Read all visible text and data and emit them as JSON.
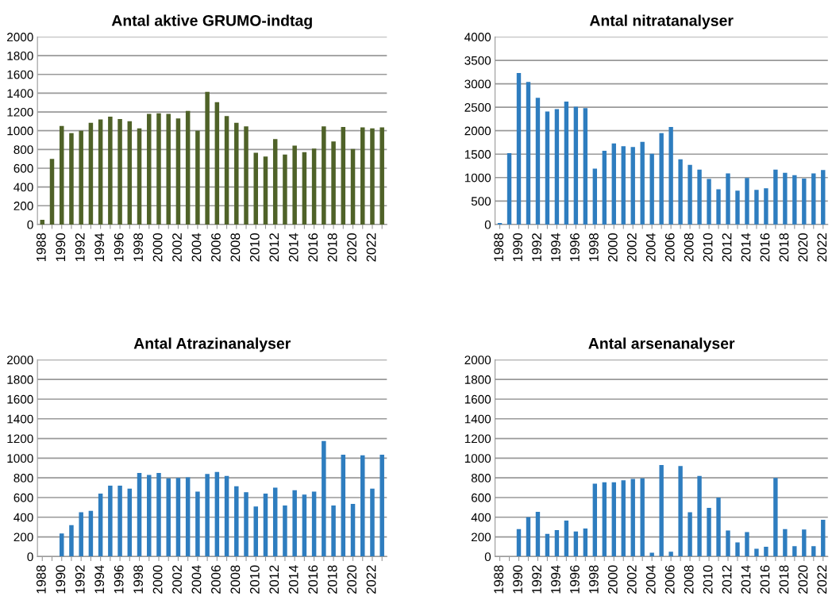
{
  "chart_data": [
    {
      "type": "bar",
      "title": "Antal aktive GRUMO-indtag",
      "categories": [
        "1988",
        null,
        "1990",
        null,
        "1992",
        null,
        "1994",
        null,
        "1996",
        null,
        "1998",
        null,
        "2000",
        null,
        "2002",
        null,
        "2004",
        null,
        "2006",
        null,
        "2008",
        null,
        "2010",
        null,
        "2012",
        null,
        "2014",
        null,
        "2016",
        null,
        "2018",
        null,
        "2020",
        null,
        "2022",
        null
      ],
      "values": [
        50,
        700,
        1050,
        975,
        1000,
        1085,
        1120,
        1150,
        1125,
        1100,
        1025,
        1180,
        1185,
        1180,
        1130,
        1210,
        1000,
        1415,
        1305,
        1155,
        1085,
        1045,
        765,
        725,
        910,
        745,
        840,
        770,
        810,
        1045,
        885,
        1040,
        805,
        1035,
        1025,
        1035
      ],
      "color": "#4f6228",
      "ylim": [
        0,
        2000
      ],
      "yticks": [
        0,
        200,
        400,
        600,
        800,
        1000,
        1200,
        1400,
        1600,
        1800,
        2000
      ],
      "grid": "y"
    },
    {
      "type": "bar",
      "title": "Antal nitratanalyser",
      "categories": [
        "1988",
        null,
        "1990",
        null,
        "1992",
        null,
        "1994",
        null,
        "1996",
        null,
        "1998",
        null,
        "2000",
        null,
        "2002",
        null,
        "2004",
        null,
        "2006",
        null,
        "2008",
        null,
        "2010",
        null,
        "2012",
        null,
        "2014",
        null,
        "2016",
        null,
        "2018",
        null,
        "2020",
        null,
        "2022"
      ],
      "values": [
        30,
        1520,
        3230,
        3040,
        2700,
        2410,
        2460,
        2620,
        2510,
        2480,
        1190,
        1570,
        1730,
        1670,
        1650,
        1760,
        1510,
        1950,
        2080,
        1390,
        1270,
        1170,
        970,
        750,
        1090,
        720,
        990,
        740,
        770,
        1170,
        1100,
        1050,
        980,
        1090,
        1160
      ],
      "color": "#2e7dbf",
      "ylim": [
        0,
        4000
      ],
      "yticks": [
        0,
        500,
        1000,
        1500,
        2000,
        2500,
        3000,
        3500,
        4000
      ],
      "grid": "y"
    },
    {
      "type": "bar",
      "title": "Antal Atrazinanalyser",
      "categories": [
        "1988",
        null,
        "1990",
        null,
        "1992",
        null,
        "1994",
        null,
        "1996",
        null,
        "1998",
        null,
        "2000",
        null,
        "2002",
        null,
        "2004",
        null,
        "2006",
        null,
        "2008",
        null,
        "2010",
        null,
        "2012",
        null,
        "2014",
        null,
        "2016",
        null,
        "2018",
        null,
        "2020",
        null,
        "2022",
        null
      ],
      "values": [
        null,
        null,
        235,
        320,
        450,
        465,
        640,
        720,
        720,
        690,
        850,
        830,
        850,
        795,
        800,
        805,
        660,
        840,
        860,
        820,
        715,
        655,
        510,
        640,
        700,
        520,
        675,
        630,
        660,
        1175,
        520,
        1035,
        535,
        1030,
        690,
        1035
      ],
      "color": "#2e7dbf",
      "ylim": [
        0,
        2000
      ],
      "yticks": [
        0,
        200,
        400,
        600,
        800,
        1000,
        1200,
        1400,
        1600,
        1800,
        2000
      ],
      "grid": "y"
    },
    {
      "type": "bar",
      "title": "Antal arsenanalyser",
      "categories": [
        "1988",
        null,
        "1990",
        null,
        "1992",
        null,
        "1994",
        null,
        "1996",
        null,
        "1998",
        null,
        "2000",
        null,
        "2002",
        null,
        "2004",
        null,
        "2006",
        null,
        "2008",
        null,
        "2010",
        null,
        "2012",
        null,
        "2014",
        null,
        "2016",
        null,
        "2018",
        null,
        "2020",
        null,
        "2022"
      ],
      "values": [
        null,
        null,
        280,
        400,
        455,
        230,
        270,
        365,
        255,
        285,
        740,
        755,
        755,
        775,
        790,
        795,
        40,
        930,
        50,
        920,
        450,
        820,
        495,
        600,
        265,
        145,
        250,
        80,
        100,
        800,
        280,
        105,
        275,
        105,
        375
      ],
      "color": "#2e7dbf",
      "ylim": [
        0,
        2000
      ],
      "yticks": [
        0,
        200,
        400,
        600,
        800,
        1000,
        1200,
        1400,
        1600,
        1800,
        2000
      ],
      "grid": "y"
    }
  ]
}
